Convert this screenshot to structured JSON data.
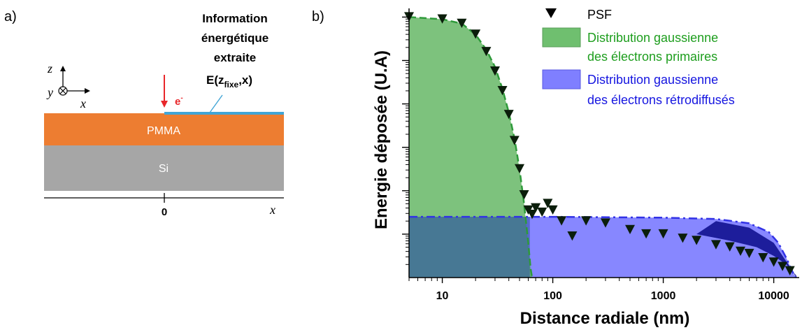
{
  "panel_a": {
    "label": "a)",
    "info_line1": "Information",
    "info_line2": "énergétique",
    "info_line3": "extraite",
    "info_E": "E(z",
    "info_sub": "fixe",
    "info_end": ",x)",
    "beam": "e",
    "beam_sup": "-",
    "axis_z": "z",
    "axis_y": "y",
    "axis_x": "x",
    "layer_top": "PMMA",
    "layer_bottom": "Si",
    "origin": "0",
    "x_axis": "x",
    "colors": {
      "pmma": "#ED7D31",
      "si": "#A6A6A6",
      "interface": "#41A5D6",
      "beam": "#E8262A"
    }
  },
  "panel_b": {
    "label": "b)"
  },
  "chart_data": {
    "type": "scatter",
    "title": "",
    "xlabel": "Distance radiale (nm)",
    "ylabel": "Energie déposée (U.A)",
    "x_scale": "log",
    "xlim": [
      5,
      17000
    ],
    "y_scale": "log",
    "ylim_decades": [
      0,
      6.2
    ],
    "xticks": [
      10,
      100,
      1000,
      10000
    ],
    "xtick_labels": [
      "10",
      "100",
      "1000",
      "10000"
    ],
    "legend_position": "top-right",
    "series": [
      {
        "name": "PSF",
        "marker": "triangle-down",
        "color": "#000000",
        "points": [
          [
            5,
            6.0
          ],
          [
            10,
            5.95
          ],
          [
            15,
            5.85
          ],
          [
            20,
            5.6
          ],
          [
            25,
            5.2
          ],
          [
            30,
            4.75
          ],
          [
            35,
            4.3
          ],
          [
            40,
            3.75
          ],
          [
            45,
            3.15
          ],
          [
            50,
            2.5
          ],
          [
            55,
            1.9
          ],
          [
            60,
            1.55
          ],
          [
            65,
            1.45
          ],
          [
            70,
            1.6
          ],
          [
            80,
            1.5
          ],
          [
            90,
            1.7
          ],
          [
            100,
            1.55
          ],
          [
            120,
            1.3
          ],
          [
            150,
            0.95
          ],
          [
            200,
            1.3
          ],
          [
            300,
            1.25
          ],
          [
            500,
            1.1
          ],
          [
            700,
            1.0
          ],
          [
            1000,
            1.0
          ],
          [
            1500,
            0.9
          ],
          [
            2000,
            0.85
          ],
          [
            3000,
            0.75
          ],
          [
            4000,
            0.7
          ],
          [
            5000,
            0.6
          ],
          [
            6000,
            0.55
          ],
          [
            8000,
            0.45
          ],
          [
            10000,
            0.35
          ],
          [
            12000,
            0.25
          ],
          [
            14000,
            0.15
          ]
        ]
      },
      {
        "name": "Distribution gaussienne des électrons primaires",
        "name_line1": "Distribution gaussienne",
        "name_line2": "des électrons primaires",
        "type": "area",
        "color": "#5CB35C",
        "text_color": "#1E9E1E",
        "points": [
          [
            5,
            6.0
          ],
          [
            10,
            5.95
          ],
          [
            15,
            5.85
          ],
          [
            20,
            5.6
          ],
          [
            25,
            5.25
          ],
          [
            30,
            4.85
          ],
          [
            35,
            4.35
          ],
          [
            40,
            3.8
          ],
          [
            45,
            3.2
          ],
          [
            50,
            2.5
          ],
          [
            55,
            1.7
          ],
          [
            60,
            0.8
          ],
          [
            63,
            0.2
          ],
          [
            65,
            0.0
          ]
        ]
      },
      {
        "name": "Distribution gaussienne des électrons rétrodiffusés",
        "name_line1": "Distribution gaussienne",
        "name_line2": "des électrons rétrodiffusés",
        "type": "area",
        "color": "#7070FF",
        "text_color": "#1515E0",
        "points": [
          [
            5,
            1.4
          ],
          [
            100,
            1.4
          ],
          [
            1000,
            1.38
          ],
          [
            3000,
            1.35
          ],
          [
            6000,
            1.25
          ],
          [
            9000,
            1.05
          ],
          [
            11000,
            0.8
          ],
          [
            13000,
            0.45
          ],
          [
            15000,
            0.1
          ],
          [
            16000,
            0.0
          ]
        ]
      }
    ]
  }
}
